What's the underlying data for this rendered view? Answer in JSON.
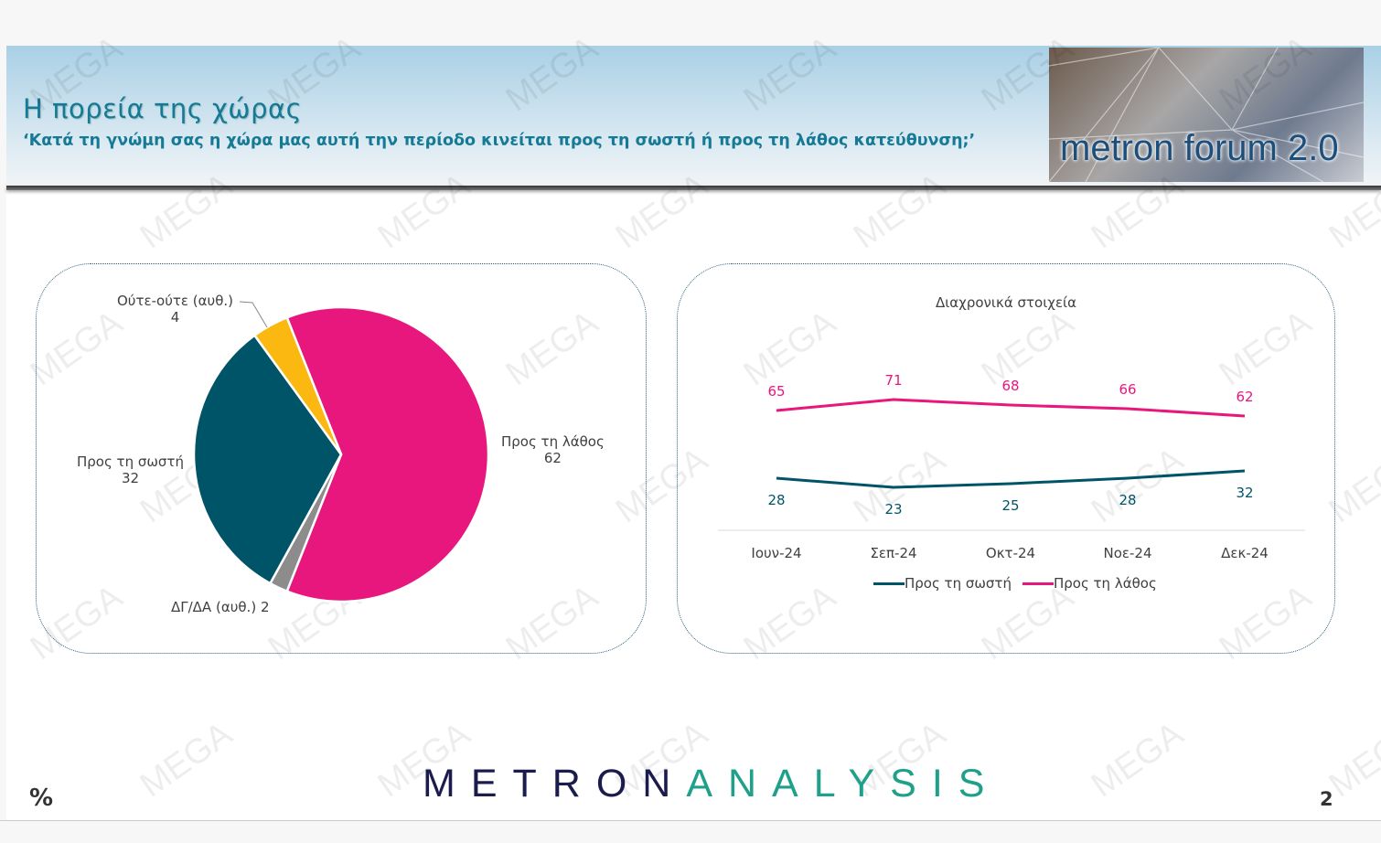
{
  "header": {
    "title": "Η πορεία της χώρας",
    "subtitle": "‘Κατά τη γνώμη σας η χώρα μας αυτή την περίοδο κινείται προς τη σωστή ή προς τη λάθος κατεύθυνση;’",
    "forum_logo": "metron forum 2.0"
  },
  "footer": {
    "logo_part1": "METRON",
    "logo_part2": "ANALYSIS",
    "unit": "%",
    "page_number": "2"
  },
  "watermark": "MEGA",
  "colors": {
    "wrong": "#e8177d",
    "right": "#005468",
    "neither": "#fbb810",
    "dk": "#8c8c8c",
    "logo_dark": "#1b1b4d",
    "logo_teal": "#1fa08a"
  },
  "chart_data": [
    {
      "type": "pie",
      "slices": [
        {
          "label": "Προς τη λάθος",
          "value": 62,
          "color": "#e8177d"
        },
        {
          "label": "ΔΓ/ΔΑ (αυθ.)",
          "value": 2,
          "color": "#8c8c8c"
        },
        {
          "label": "Προς τη σωστή",
          "value": 32,
          "color": "#005468"
        },
        {
          "label": "Ούτε-ούτε (αυθ.)",
          "value": 4,
          "color": "#fbb810"
        }
      ]
    },
    {
      "type": "line",
      "title": "Διαχρονικά στοιχεία",
      "categories": [
        "Ιουν-24",
        "Σεπ-24",
        "Οκτ-24",
        "Νοε-24",
        "Δεκ-24"
      ],
      "series": [
        {
          "name": "Προς τη σωστή",
          "values": [
            28,
            23,
            25,
            28,
            32
          ],
          "color": "#005468"
        },
        {
          "name": "Προς τη λάθος",
          "values": [
            65,
            71,
            68,
            66,
            62
          ],
          "color": "#e8177d"
        }
      ],
      "legend": "bottom"
    }
  ]
}
